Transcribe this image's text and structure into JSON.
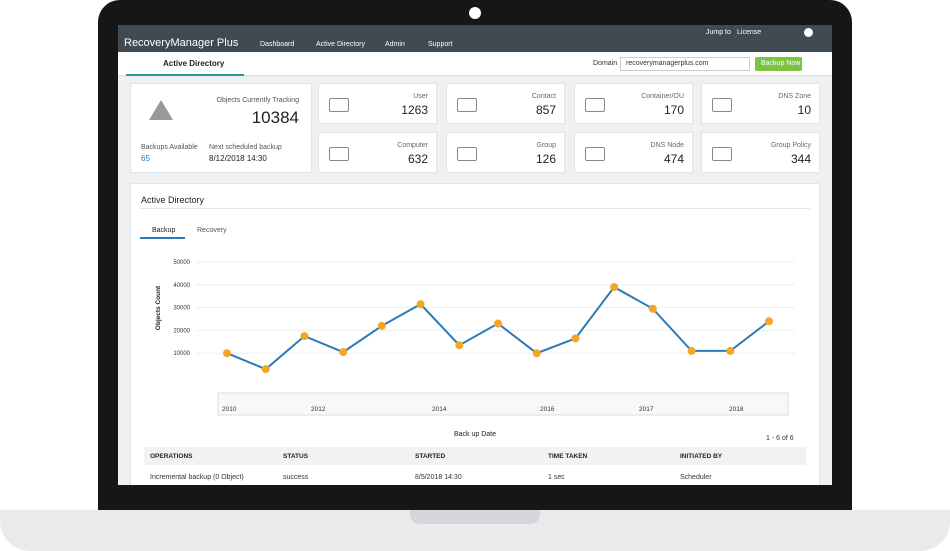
{
  "header": {
    "logo": "RecoveryManager Plus",
    "nav": [
      "Dashboard",
      "Active Directory",
      "Admin",
      "Support"
    ],
    "jump_to": "Jump to",
    "license": "License"
  },
  "subbar": {
    "tab": "Active Directory",
    "domain_label": "Domain",
    "domain": "recoverymanagerplus.com",
    "button": "Backup Now"
  },
  "summary": {
    "tracking_label": "Objects Currently Tracking",
    "tracking": "10384",
    "backups_label": "Backups Available",
    "backups": "65",
    "next_label": "Next scheduled backup",
    "next": "8/12/2018 14:30"
  },
  "cards": [
    {
      "label": "User",
      "value": "1263"
    },
    {
      "label": "Contact",
      "value": "857"
    },
    {
      "label": "Container/OU",
      "value": "170"
    },
    {
      "label": "DNS Zone",
      "value": "10"
    },
    {
      "label": "Computer",
      "value": "632"
    },
    {
      "label": "Group",
      "value": "126"
    },
    {
      "label": "DNS Node",
      "value": "474"
    },
    {
      "label": "Group Policy",
      "value": "344"
    }
  ],
  "panel": {
    "title": "Active Directory",
    "tabs": [
      "Backup",
      "Recovery"
    ],
    "pager": "1 - 6 of 6"
  },
  "chart_data": {
    "type": "line",
    "y_label": "Objects Count",
    "x_label": "Back up Date",
    "categories": [
      null,
      null,
      null,
      null,
      null,
      null,
      null,
      null,
      null,
      null,
      null,
      null,
      null,
      null,
      null
    ],
    "values": [
      10000,
      3000,
      17500,
      10500,
      22000,
      31500,
      13500,
      23000,
      10000,
      16500,
      39000,
      29500,
      11000,
      11000,
      24000
    ],
    "color": "#2b7bb9",
    "marker_color": "#f5a623",
    "ylim": [
      0,
      50000
    ],
    "yticks": [
      10000,
      20000,
      30000,
      40000,
      50000
    ],
    "grid": true,
    "navigator_labels": [
      "2010",
      "2012",
      "2014",
      "2016",
      "2017",
      "2018"
    ]
  },
  "table": {
    "columns": [
      "OPERATIONS",
      "STATUS",
      "STARTED",
      "TIME TAKEN",
      "INITIATED BY"
    ],
    "rows": [
      [
        "Incremental backup (0 Object)",
        "success",
        "8/5/2018 14:30",
        "1 sec",
        "Scheduler"
      ]
    ]
  }
}
